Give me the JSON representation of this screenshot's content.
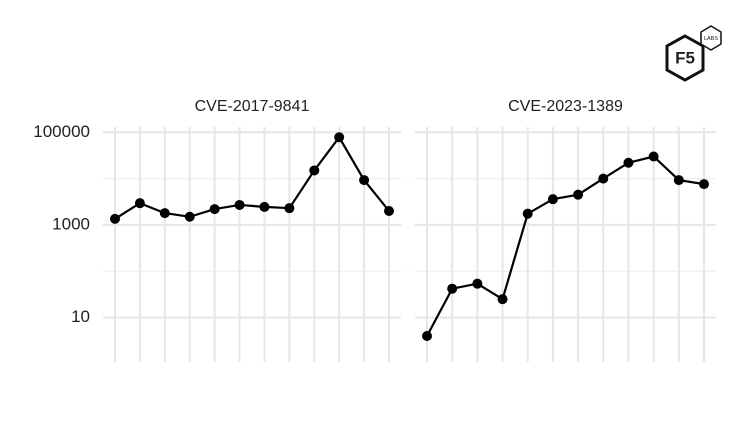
{
  "logo": {
    "text": "F5",
    "tag": "LABS"
  },
  "chart_data": [
    {
      "type": "line",
      "title": "CVE-2017-9841",
      "log_scale": true,
      "grid": true,
      "color": "#000000",
      "categories": [
        null,
        null,
        null,
        null,
        null,
        null,
        null,
        null,
        null,
        null,
        null,
        null
      ],
      "values": [
        1350,
        2950,
        1800,
        1500,
        2200,
        2700,
        2450,
        2300,
        15000,
        78000,
        9300,
        2000
      ],
      "ylim": [
        1.1,
        130000
      ],
      "yticks": [
        10,
        1000,
        100000
      ]
    },
    {
      "type": "line",
      "title": "CVE-2023-1389",
      "log_scale": true,
      "grid": true,
      "color": "#000000",
      "categories": [
        null,
        null,
        null,
        null,
        null,
        null,
        null,
        null,
        null,
        null,
        null,
        null
      ],
      "values": [
        4,
        42,
        54,
        25,
        1750,
        3600,
        4500,
        10000,
        22000,
        30000,
        9300,
        7600
      ],
      "ylim": [
        1.1,
        130000
      ],
      "yticks": [
        10,
        1000,
        100000
      ]
    }
  ]
}
